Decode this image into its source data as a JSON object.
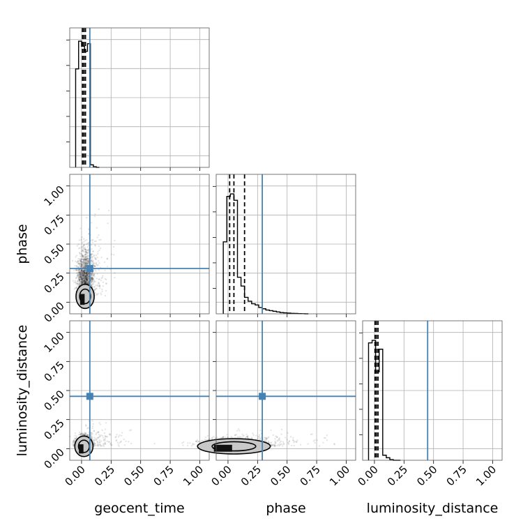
{
  "chart_data": {
    "type": "corner",
    "parameters": [
      "geocent_time",
      "phase",
      "luminosity_distance"
    ],
    "xlim": [
      -0.1,
      1.08
    ],
    "ylim": [
      -0.1,
      1.1
    ],
    "ticks": [
      0.0,
      0.25,
      0.5,
      0.75,
      1.0
    ],
    "tick_labels": [
      "0.00",
      "0.25",
      "0.50",
      "0.75",
      "1.00"
    ],
    "grid": true,
    "colors": {
      "truth": "#4682b4",
      "hist": "#000000",
      "samples": "#000000",
      "contour_fill": "#c8c8c8"
    },
    "truths": {
      "geocent_time": 0.07,
      "phase": 0.29,
      "luminosity_distance": 0.45
    },
    "histograms": {
      "geocent_time": {
        "edges": [
          -0.05,
          -0.025,
          0.0,
          0.025,
          0.05,
          0.075,
          0.1,
          0.125,
          0.15
        ],
        "counts": [
          0.78,
          1.0,
          0.96,
          0.92,
          0.98,
          0.02,
          0.005,
          0.0
        ],
        "quantiles": [
          0.008,
          0.02,
          0.033
        ]
      },
      "phase": {
        "edges": [
          -0.04,
          -0.01,
          0.02,
          0.05,
          0.08,
          0.11,
          0.14,
          0.17,
          0.2,
          0.23,
          0.26,
          0.29,
          0.32,
          0.35,
          0.38,
          0.41,
          0.44,
          0.47,
          0.5,
          0.53,
          0.56,
          0.59,
          0.62,
          0.65,
          0.68
        ],
        "counts": [
          0.57,
          0.93,
          0.95,
          0.9,
          0.29,
          0.22,
          0.13,
          0.1,
          0.08,
          0.07,
          0.05,
          0.04,
          0.03,
          0.025,
          0.02,
          0.015,
          0.01,
          0.008,
          0.006,
          0.004,
          0.003,
          0.002,
          0.001,
          0.0
        ],
        "quantiles": [
          0.014,
          0.05,
          0.14
        ]
      },
      "luminosity_distance": {
        "edges": [
          -0.05,
          -0.02,
          0.01,
          0.04,
          0.07,
          0.1,
          0.13,
          0.16,
          0.19,
          0.22
        ],
        "counts": [
          0.93,
          0.95,
          0.7,
          0.88,
          0.04,
          0.02,
          0.005,
          0.0,
          0.0
        ],
        "quantiles": [
          0.005,
          0.016,
          0.03
        ]
      }
    },
    "pairs": [
      {
        "x": "geocent_time",
        "y": "phase",
        "center": [
          0.03,
          0.05
        ],
        "spread_x": 0.035,
        "spread_y": 0.13,
        "tail_x": 0.25,
        "tail_y": 0.75
      },
      {
        "x": "geocent_time",
        "y": "luminosity_distance",
        "center": [
          0.02,
          0.02
        ],
        "spread_x": 0.035,
        "spread_y": 0.04,
        "tail_x": 0.4,
        "tail_y": 0.22
      },
      {
        "x": "phase",
        "y": "luminosity_distance",
        "center": [
          0.05,
          0.02
        ],
        "spread_x": 0.14,
        "spread_y": 0.03,
        "tail_x": 0.85,
        "tail_y": 0.15
      }
    ]
  }
}
